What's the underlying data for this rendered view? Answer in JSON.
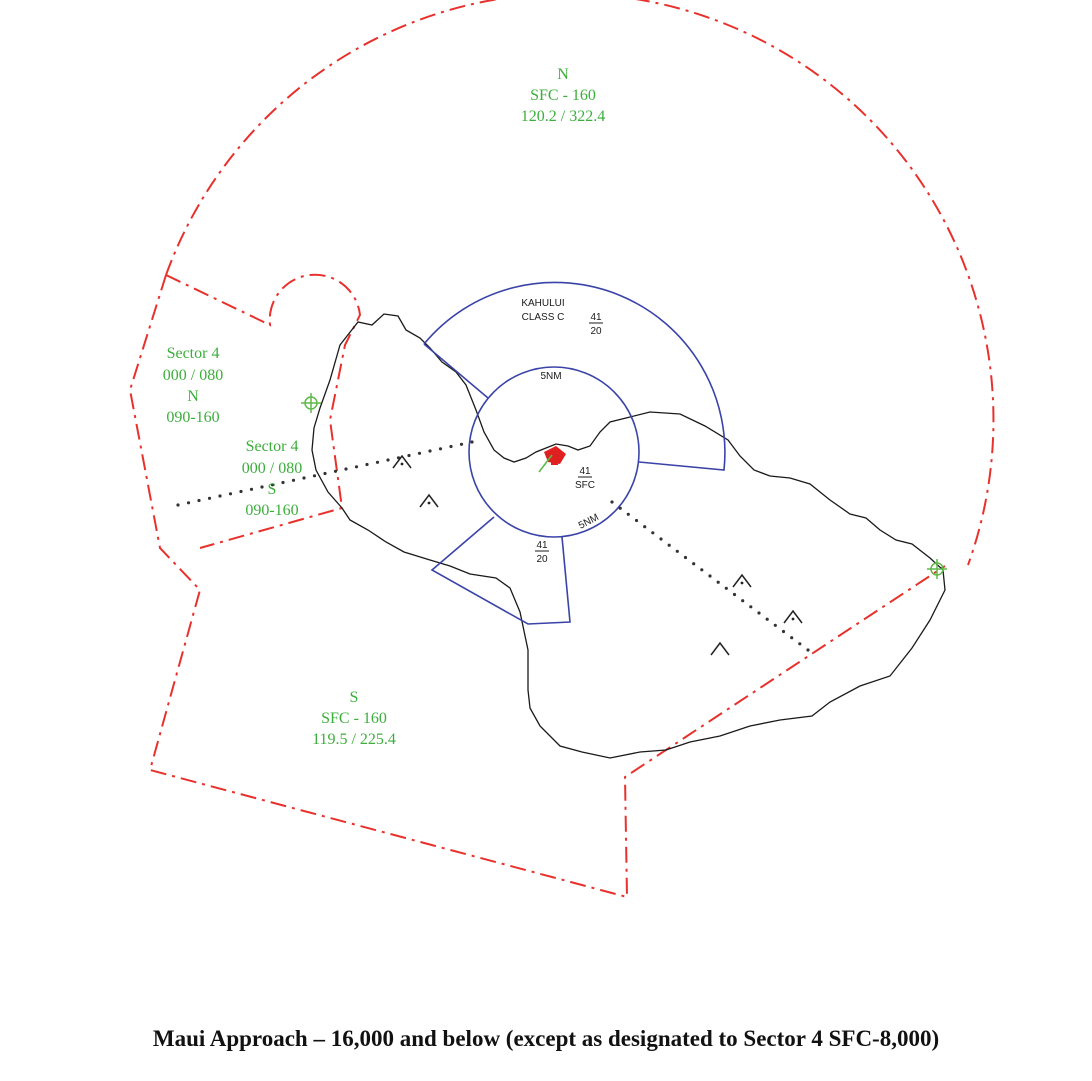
{
  "caption": "Maui Approach – 16,000 and below (except as designated to Sector 4 SFC-8,000)",
  "colors": {
    "boundary": "#e8312c",
    "class_c": "#3a44a8",
    "label": "#3cae3c",
    "coast": "#1a1a1a",
    "airport": "#e02020"
  },
  "sectors": {
    "north": {
      "name": "N",
      "altitude": "SFC - 160",
      "frequency": "120.2 / 322.4"
    },
    "south": {
      "name": "S",
      "altitude": "SFC - 160",
      "frequency": "119.5 / 225.4"
    },
    "sector4_north": {
      "name": "Sector 4",
      "altitude": "000 / 080",
      "sub": "N",
      "range": "090-160"
    },
    "sector4_south": {
      "name": "Sector 4",
      "altitude": "000 / 080",
      "sub": "S",
      "range": "090-160"
    }
  },
  "class_c": {
    "name": "KAHULUI",
    "type": "CLASS C",
    "outer_ceiling": "41",
    "outer_floor": "20",
    "inner_ceiling": "41",
    "inner_floor": "SFC",
    "south_ceiling": "41",
    "south_floor": "20",
    "inner_ring_label_top": "5NM",
    "inner_ring_label_se": "5NM"
  }
}
